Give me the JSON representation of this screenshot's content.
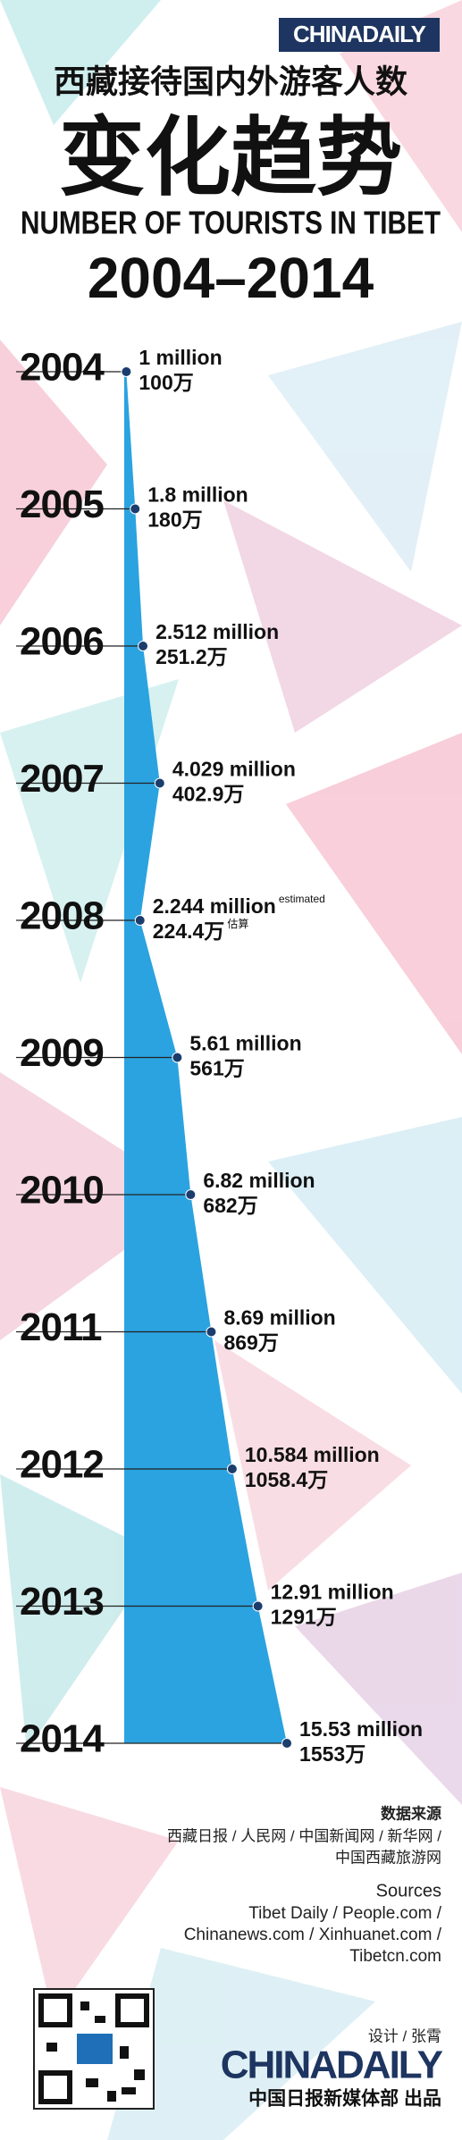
{
  "header": {
    "logo": "CHINADAILY"
  },
  "chart_data": {
    "type": "area",
    "title_cn": "西藏接待国内外游客人数",
    "subtitle_cn": "变化趋势",
    "title": "NUMBER OF TOURISTS IN TIBET",
    "subtitle": "2004–2014",
    "categories": [
      "2004",
      "2005",
      "2006",
      "2007",
      "2008",
      "2009",
      "2010",
      "2011",
      "2012",
      "2013",
      "2014"
    ],
    "values": [
      1,
      1.8,
      2.512,
      4.029,
      2.244,
      5.61,
      6.82,
      8.69,
      10.584,
      12.91,
      15.53
    ],
    "value_labels": [
      "1 million",
      "1.8 million",
      "2.512 million",
      "4.029 million",
      "2.244 million",
      "5.61 million",
      "6.82 million",
      "8.69 million",
      "10.584 million",
      "12.91 million",
      "15.53 million"
    ],
    "value_labels_cn": [
      "100万",
      "180万",
      "251.2万",
      "402.9万",
      "224.4万",
      "561万",
      "682万",
      "869万",
      "1058.4万",
      "1291万",
      "1553万"
    ],
    "annotations": [
      {
        "category": "2008",
        "text": "estimated"
      },
      {
        "category": "2008",
        "text": "估算"
      }
    ],
    "color": "#2aa3e0",
    "point_color": "#1b3d6e",
    "xlim": [
      0,
      30
    ]
  },
  "footer": {
    "sources_cn_title": "数据来源",
    "sources_cn": [
      "西藏日报 / 人民网 / 中国新闻网 / 新华网 /",
      "中国西藏旅游网"
    ],
    "sources_title": "Sources",
    "sources": [
      "Tibet Daily / People.com /",
      "Chinanews.com / Xinhuanet.com /",
      "Tibetcn.com"
    ],
    "design": "设计 / 张霄",
    "logo": "CHINADAILY",
    "publisher": "中国日报新媒体部 出品"
  }
}
